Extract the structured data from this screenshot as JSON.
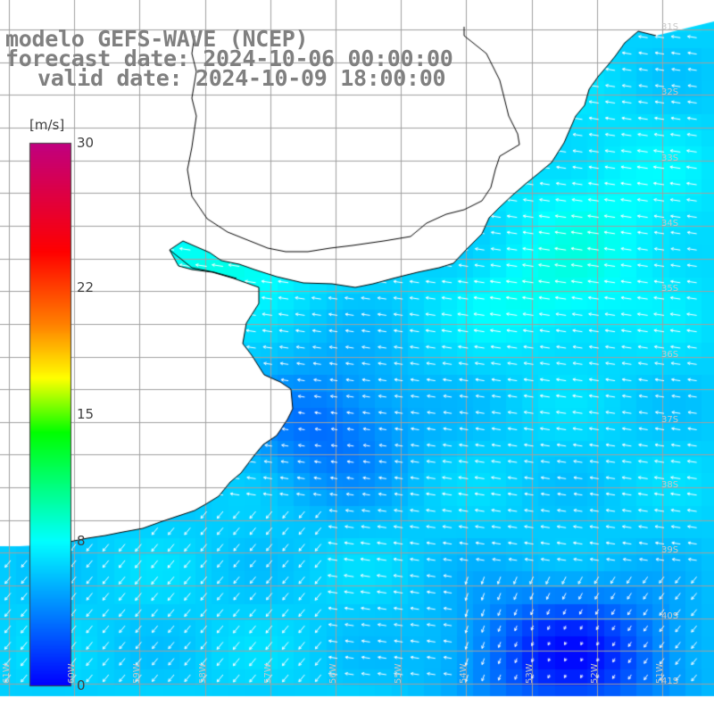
{
  "title": {
    "model": "modelo GEFS-WAVE (NCEP)",
    "forecast": "forecast date: 2024-10-06 00:00:00",
    "valid": "valid date: 2024-10-09 18:00:00"
  },
  "colorbar": {
    "unit": "[m/s]",
    "min": 0,
    "max": 30,
    "ticks": [
      "30",
      "22",
      "15",
      "8",
      "0"
    ],
    "tick_values": [
      30,
      22,
      15,
      8,
      0
    ],
    "stops": [
      {
        "value": 0,
        "color": "#0000ff"
      },
      {
        "value": 4,
        "color": "#0080ff"
      },
      {
        "value": 8,
        "color": "#00ffff"
      },
      {
        "value": 11,
        "color": "#00ff80"
      },
      {
        "value": 14,
        "color": "#00ff00"
      },
      {
        "value": 17,
        "color": "#ffff00"
      },
      {
        "value": 20,
        "color": "#ff8000"
      },
      {
        "value": 24,
        "color": "#ff0000"
      },
      {
        "value": 30,
        "color": "#c00080"
      }
    ]
  },
  "map": {
    "lon_range": [
      -61,
      -50
    ],
    "lat_range": [
      -41.5,
      -30.8
    ],
    "lat_labels": [
      "31S",
      "32S",
      "33S",
      "34S",
      "35S",
      "36S",
      "37S",
      "38S",
      "39S",
      "40S",
      "41S"
    ],
    "lat_values": [
      -31,
      -32,
      -33,
      -34,
      -35,
      -36,
      -37,
      -38,
      -39,
      -40,
      -41
    ],
    "lon_labels": [
      "61W",
      "60W",
      "59W",
      "58W",
      "57W",
      "56W",
      "55W",
      "54W",
      "53W",
      "52W",
      "51W"
    ],
    "lon_values": [
      -61,
      -60,
      -59,
      -58,
      -57,
      -56,
      -55,
      -54,
      -53,
      -52,
      -51
    ],
    "grid": true,
    "coast_color": "#000000",
    "grid_color": "#a0a0a0",
    "arrow_color": "#ffffff",
    "wind_from": "east-southeast",
    "field_notes": "higher wind speed along the Uruguayan coast, lowest speed in the south-east corner"
  }
}
